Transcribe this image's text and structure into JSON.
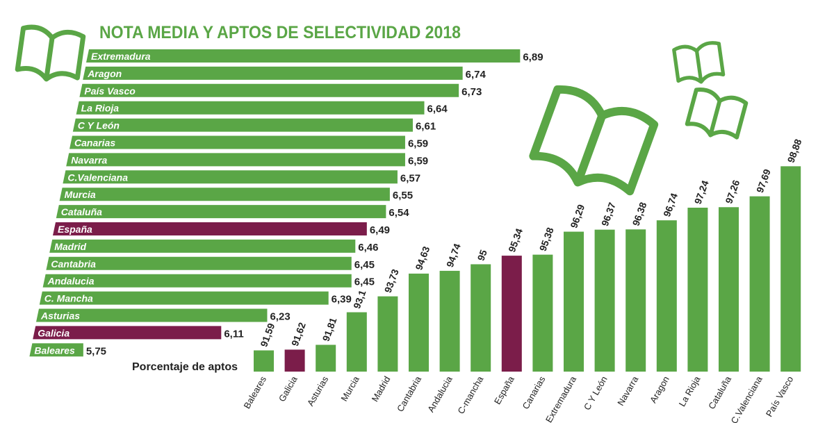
{
  "chart_data": [
    {
      "type": "hbar",
      "title": "NOTA MEDIA Y APTOS DE SELECTIVIDAD 2018",
      "categories": [
        "Extremadura",
        "Aragon",
        "País Vasco",
        "La Rioja",
        "C Y León",
        "Canarias",
        "Navarra",
        "C.Valenciana",
        "Murcia",
        "Cataluña",
        "España",
        "Madrid",
        "Cantabria",
        "Andalucia",
        "C. Mancha",
        "Asturias",
        "Galicia",
        "Baleares"
      ],
      "values": [
        6.89,
        6.74,
        6.73,
        6.64,
        6.61,
        6.59,
        6.59,
        6.57,
        6.55,
        6.54,
        6.49,
        6.46,
        6.45,
        6.45,
        6.39,
        6.23,
        6.11,
        5.75
      ],
      "value_labels": [
        "6,89",
        "6,74",
        "6,73",
        "6,64",
        "6,61",
        "6,59",
        "6,59",
        "6,57",
        "6,55",
        "6,54",
        "6,49",
        "6,46",
        "6,45",
        "6,45",
        "6,39",
        "6,23",
        "6,11",
        "5,75"
      ],
      "colors": [
        "#5aa646",
        "#5aa646",
        "#5aa646",
        "#5aa646",
        "#5aa646",
        "#5aa646",
        "#5aa646",
        "#5aa646",
        "#5aa646",
        "#5aa646",
        "#7b1d4a",
        "#5aa646",
        "#5aa646",
        "#5aa646",
        "#5aa646",
        "#5aa646",
        "#7b1d4a",
        "#5aa646"
      ],
      "xlim": [
        5.5,
        7
      ]
    },
    {
      "type": "bar",
      "title": "Porcentaje de aptos",
      "categories": [
        "Baleares",
        "Galicia",
        "Asturias",
        "Murcia",
        "Madrid",
        "Cantabria",
        "Andalucia",
        "C-mancha",
        "España",
        "Canarias",
        "Extremadura",
        "C Y León",
        "Navarra",
        "Aragon",
        "La Rioja",
        "Cataluña",
        "C.Valenciana",
        "País Vasco"
      ],
      "values": [
        91.59,
        91.62,
        91.81,
        93.1,
        93.73,
        94.63,
        94.74,
        95,
        95.34,
        95.38,
        96.29,
        96.37,
        96.38,
        96.74,
        97.24,
        97.26,
        97.69,
        98.88
      ],
      "value_labels": [
        "91,59",
        "91,62",
        "91,81",
        "93,1",
        "93,73",
        "94,63",
        "94,74",
        "95",
        "95,34",
        "95,38",
        "96,29",
        "96,37",
        "96,38",
        "96,74",
        "97,24",
        "97,26",
        "97,69",
        "98,88"
      ],
      "colors": [
        "#5aa646",
        "#7b1d4a",
        "#5aa646",
        "#5aa646",
        "#5aa646",
        "#5aa646",
        "#5aa646",
        "#5aa646",
        "#7b1d4a",
        "#5aa646",
        "#5aa646",
        "#5aa646",
        "#5aa646",
        "#5aa646",
        "#5aa646",
        "#5aa646",
        "#5aa646",
        "#5aa646"
      ],
      "ylim": [
        90.75,
        99
      ]
    }
  ]
}
